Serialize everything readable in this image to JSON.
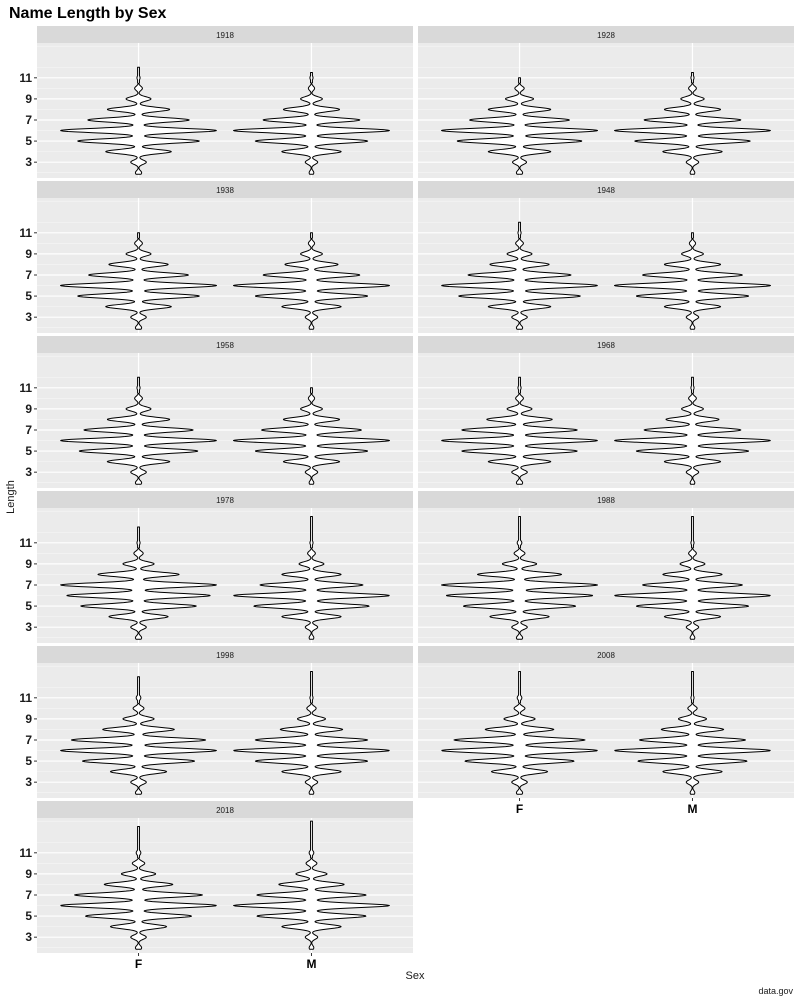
{
  "chart_data": {
    "type": "violin",
    "title": "Name Length by Sex",
    "xlabel": "Sex",
    "ylabel": "Length",
    "caption": "data.gov",
    "categories": [
      "F",
      "M"
    ],
    "y_ticks": [
      3,
      5,
      7,
      9,
      11
    ],
    "ylim": [
      1.5,
      14.3
    ],
    "grid": true,
    "facet_variable": "year",
    "panels": [
      {
        "year": "1918",
        "series": [
          {
            "category": "F",
            "max_length": 12,
            "density": {
              "2": 0.04,
              "3": 0.1,
              "4": 0.42,
              "5": 0.78,
              "6": 1.0,
              "7": 0.65,
              "8": 0.4,
              "9": 0.16,
              "10": 0.05,
              "11": 0.02
            }
          },
          {
            "category": "M",
            "max_length": 11.5,
            "density": {
              "2": 0.03,
              "3": 0.08,
              "4": 0.38,
              "5": 0.72,
              "6": 1.0,
              "7": 0.62,
              "8": 0.36,
              "9": 0.14,
              "10": 0.04,
              "11": 0.02
            }
          }
        ]
      },
      {
        "year": "1928",
        "series": [
          {
            "category": "F",
            "max_length": 11,
            "density": {
              "2": 0.04,
              "3": 0.09,
              "4": 0.4,
              "5": 0.8,
              "6": 1.0,
              "7": 0.64,
              "8": 0.4,
              "9": 0.18,
              "10": 0.06
            }
          },
          {
            "category": "M",
            "max_length": 11.5,
            "density": {
              "2": 0.03,
              "3": 0.08,
              "4": 0.38,
              "5": 0.74,
              "6": 1.0,
              "7": 0.62,
              "8": 0.36,
              "9": 0.15,
              "10": 0.05,
              "11": 0.02
            }
          }
        ]
      },
      {
        "year": "1938",
        "series": [
          {
            "category": "F",
            "max_length": 11,
            "density": {
              "2": 0.04,
              "3": 0.1,
              "4": 0.42,
              "5": 0.78,
              "6": 1.0,
              "7": 0.64,
              "8": 0.38,
              "9": 0.16,
              "10": 0.05
            }
          },
          {
            "category": "M",
            "max_length": 11,
            "density": {
              "2": 0.03,
              "3": 0.08,
              "4": 0.38,
              "5": 0.72,
              "6": 1.0,
              "7": 0.62,
              "8": 0.34,
              "9": 0.14,
              "10": 0.04
            }
          }
        ]
      },
      {
        "year": "1948",
        "series": [
          {
            "category": "F",
            "max_length": 12,
            "density": {
              "2": 0.04,
              "3": 0.1,
              "4": 0.4,
              "5": 0.78,
              "6": 1.0,
              "7": 0.66,
              "8": 0.38,
              "9": 0.16,
              "10": 0.05,
              "11": 0.02
            }
          },
          {
            "category": "M",
            "max_length": 11,
            "density": {
              "2": 0.03,
              "3": 0.08,
              "4": 0.36,
              "5": 0.72,
              "6": 1.0,
              "7": 0.64,
              "8": 0.36,
              "9": 0.14,
              "10": 0.04
            }
          }
        ]
      },
      {
        "year": "1958",
        "series": [
          {
            "category": "F",
            "max_length": 12,
            "density": {
              "2": 0.04,
              "3": 0.1,
              "4": 0.4,
              "5": 0.76,
              "6": 1.0,
              "7": 0.7,
              "8": 0.4,
              "9": 0.16,
              "10": 0.05,
              "11": 0.02
            }
          },
          {
            "category": "M",
            "max_length": 11,
            "density": {
              "2": 0.03,
              "3": 0.08,
              "4": 0.36,
              "5": 0.72,
              "6": 1.0,
              "7": 0.64,
              "8": 0.36,
              "9": 0.14,
              "10": 0.04
            }
          }
        ]
      },
      {
        "year": "1968",
        "series": [
          {
            "category": "F",
            "max_length": 12,
            "density": {
              "2": 0.04,
              "3": 0.1,
              "4": 0.4,
              "5": 0.74,
              "6": 1.0,
              "7": 0.74,
              "8": 0.42,
              "9": 0.16,
              "10": 0.05,
              "11": 0.02
            }
          },
          {
            "category": "M",
            "max_length": 12,
            "density": {
              "2": 0.03,
              "3": 0.08,
              "4": 0.36,
              "5": 0.72,
              "6": 1.0,
              "7": 0.62,
              "8": 0.34,
              "9": 0.14,
              "10": 0.05,
              "11": 0.02
            }
          }
        ]
      },
      {
        "year": "1978",
        "series": [
          {
            "category": "F",
            "max_length": 12.5,
            "density": {
              "2": 0.04,
              "3": 0.1,
              "4": 0.38,
              "5": 0.74,
              "6": 0.92,
              "7": 1.0,
              "8": 0.52,
              "9": 0.2,
              "10": 0.06,
              "11": 0.02
            }
          },
          {
            "category": "M",
            "max_length": 13.5,
            "density": {
              "2": 0.03,
              "3": 0.08,
              "4": 0.38,
              "5": 0.74,
              "6": 1.0,
              "7": 0.66,
              "8": 0.38,
              "9": 0.16,
              "10": 0.05,
              "11": 0.02
            }
          }
        ]
      },
      {
        "year": "1988",
        "series": [
          {
            "category": "F",
            "max_length": 13.5,
            "density": {
              "2": 0.04,
              "3": 0.1,
              "4": 0.38,
              "5": 0.72,
              "6": 0.94,
              "7": 1.0,
              "8": 0.54,
              "9": 0.22,
              "10": 0.07,
              "11": 0.03
            }
          },
          {
            "category": "M",
            "max_length": 13.5,
            "density": {
              "2": 0.03,
              "3": 0.08,
              "4": 0.36,
              "5": 0.72,
              "6": 1.0,
              "7": 0.64,
              "8": 0.38,
              "9": 0.16,
              "10": 0.05,
              "11": 0.02
            }
          }
        ]
      },
      {
        "year": "1998",
        "series": [
          {
            "category": "F",
            "max_length": 13,
            "density": {
              "2": 0.04,
              "3": 0.1,
              "4": 0.36,
              "5": 0.72,
              "6": 1.0,
              "7": 0.86,
              "8": 0.46,
              "9": 0.2,
              "10": 0.07,
              "11": 0.03
            }
          },
          {
            "category": "M",
            "max_length": 13.5,
            "density": {
              "2": 0.03,
              "3": 0.08,
              "4": 0.38,
              "5": 0.72,
              "6": 1.0,
              "7": 0.72,
              "8": 0.4,
              "9": 0.18,
              "10": 0.06,
              "11": 0.02
            }
          }
        ]
      },
      {
        "year": "2008",
        "series": [
          {
            "category": "F",
            "max_length": 13.5,
            "density": {
              "2": 0.04,
              "3": 0.1,
              "4": 0.36,
              "5": 0.7,
              "6": 1.0,
              "7": 0.84,
              "8": 0.44,
              "9": 0.2,
              "10": 0.07,
              "11": 0.03
            }
          },
          {
            "category": "M",
            "max_length": 13.5,
            "density": {
              "2": 0.03,
              "3": 0.08,
              "4": 0.38,
              "5": 0.7,
              "6": 1.0,
              "7": 0.68,
              "8": 0.4,
              "9": 0.18,
              "10": 0.06,
              "11": 0.02
            }
          }
        ]
      },
      {
        "year": "2018",
        "series": [
          {
            "category": "F",
            "max_length": 13.5,
            "density": {
              "2": 0.04,
              "3": 0.1,
              "4": 0.36,
              "5": 0.68,
              "6": 1.0,
              "7": 0.82,
              "8": 0.44,
              "9": 0.22,
              "10": 0.08,
              "11": 0.03
            }
          },
          {
            "category": "M",
            "max_length": 14,
            "density": {
              "2": 0.03,
              "3": 0.08,
              "4": 0.38,
              "5": 0.7,
              "6": 1.0,
              "7": 0.7,
              "8": 0.42,
              "9": 0.2,
              "10": 0.07,
              "11": 0.03
            }
          }
        ]
      }
    ]
  }
}
